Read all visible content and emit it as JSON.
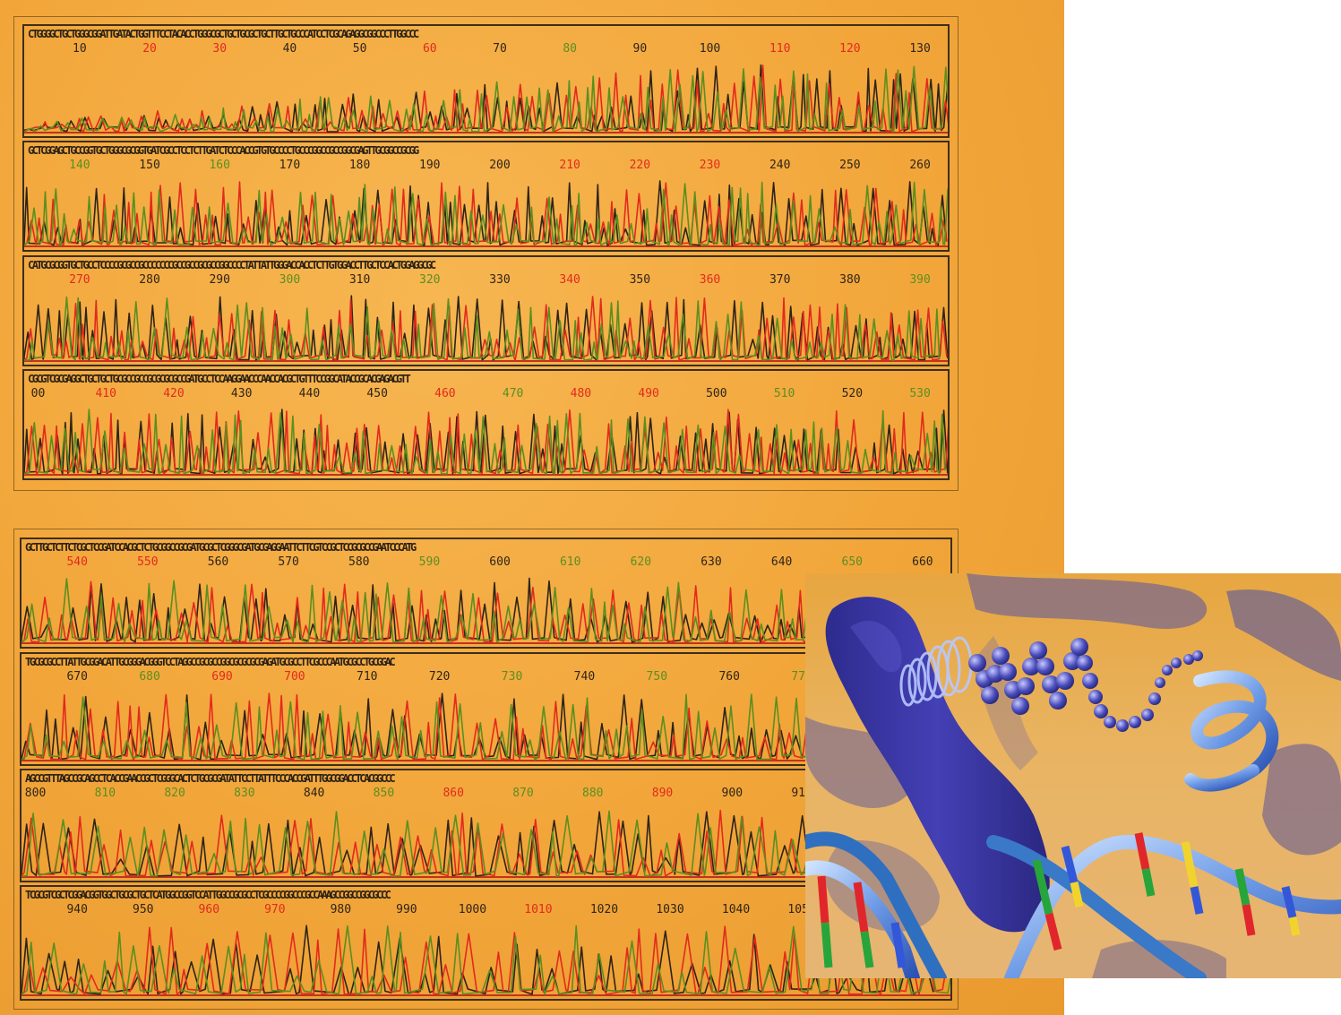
{
  "colors": {
    "background": "#f2a63a",
    "black": "#2e2418",
    "red": "#e22a1d",
    "green": "#5a8f1f",
    "baseline": "#c2331f"
  },
  "panels": [
    {
      "seq": "CTGGGGCTGCTGGGCGGATTGATACTGGTTTCCTACACCTGGGCGCTGCTGCGCTGCTTGCTGCCCATCCTCGCAGAGGCGGCCCTTGGCCC",
      "ticks": [
        {
          "label": "10",
          "c": "k"
        },
        {
          "label": "20",
          "c": "r"
        },
        {
          "label": "30",
          "c": "r"
        },
        {
          "label": "40",
          "c": "k"
        },
        {
          "label": "50",
          "c": "k"
        },
        {
          "label": "60",
          "c": "r"
        },
        {
          "label": "70",
          "c": "k"
        },
        {
          "label": "80",
          "c": "g"
        },
        {
          "label": "90",
          "c": "k"
        },
        {
          "label": "100",
          "c": "k"
        },
        {
          "label": "110",
          "c": "r"
        },
        {
          "label": "120",
          "c": "r"
        },
        {
          "label": "130",
          "c": "k"
        }
      ]
    },
    {
      "seq": "GCTCGGAGCTGCCGGTGCTGGGCGCGGTGATCGCCTCCTCTTGATCTCCCACCGTGTGCCCCTGCCCGGCCGCCGGCGAGTTGCGGCCGCGG",
      "ticks": [
        {
          "label": "140",
          "c": "g"
        },
        {
          "label": "150",
          "c": "k"
        },
        {
          "label": "160",
          "c": "g"
        },
        {
          "label": "170",
          "c": "k"
        },
        {
          "label": "180",
          "c": "k"
        },
        {
          "label": "190",
          "c": "k"
        },
        {
          "label": "200",
          "c": "k"
        },
        {
          "label": "210",
          "c": "r"
        },
        {
          "label": "220",
          "c": "r"
        },
        {
          "label": "230",
          "c": "r"
        },
        {
          "label": "240",
          "c": "k"
        },
        {
          "label": "250",
          "c": "k"
        },
        {
          "label": "260",
          "c": "k"
        }
      ]
    },
    {
      "seq": "CATGCGCGGTGCTGCCTCCCCGCGCCGCCCCCCCGCCGCCGCGCCGGCCCCTATTATTGGGACCACCTCTTGTGGACCTTGCTCCACTGGAGGCGC",
      "ticks": [
        {
          "label": "270",
          "c": "r"
        },
        {
          "label": "280",
          "c": "k"
        },
        {
          "label": "290",
          "c": "k"
        },
        {
          "label": "300",
          "c": "g"
        },
        {
          "label": "310",
          "c": "k"
        },
        {
          "label": "320",
          "c": "g"
        },
        {
          "label": "330",
          "c": "k"
        },
        {
          "label": "340",
          "c": "r"
        },
        {
          "label": "350",
          "c": "k"
        },
        {
          "label": "360",
          "c": "r"
        },
        {
          "label": "370",
          "c": "k"
        },
        {
          "label": "380",
          "c": "k"
        },
        {
          "label": "390",
          "c": "g"
        }
      ]
    },
    {
      "seq": "CGCGTCGCGAGGCTGCTGCTGCGCCGCCGCGCGCGCCGATGCCTCCAAGGAACCCAACCACGCTGTTTCCGGCATACCGCACGAGACGTT",
      "ticks": [
        {
          "label": "00",
          "c": "k"
        },
        {
          "label": "410",
          "c": "r"
        },
        {
          "label": "420",
          "c": "r"
        },
        {
          "label": "430",
          "c": "k"
        },
        {
          "label": "440",
          "c": "k"
        },
        {
          "label": "450",
          "c": "k"
        },
        {
          "label": "460",
          "c": "r"
        },
        {
          "label": "470",
          "c": "g"
        },
        {
          "label": "480",
          "c": "r"
        },
        {
          "label": "490",
          "c": "r"
        },
        {
          "label": "500",
          "c": "k"
        },
        {
          "label": "510",
          "c": "g"
        },
        {
          "label": "520",
          "c": "k"
        },
        {
          "label": "530",
          "c": "g"
        }
      ]
    },
    {
      "seq": "GCTTGCTCTTCTCGCTCCGATCCACGCTCTGCGGCCGCGATGCGCTCGGGCGATGCGAGGAATTCTTCGTCCGCTCCGCGCCGAATCCCATG",
      "ticks": [
        {
          "label": "540",
          "c": "r"
        },
        {
          "label": "550",
          "c": "r"
        },
        {
          "label": "560",
          "c": "k"
        },
        {
          "label": "570",
          "c": "k"
        },
        {
          "label": "580",
          "c": "k"
        },
        {
          "label": "590",
          "c": "g"
        },
        {
          "label": "600",
          "c": "k"
        },
        {
          "label": "610",
          "c": "g"
        },
        {
          "label": "620",
          "c": "g"
        },
        {
          "label": "630",
          "c": "k"
        },
        {
          "label": "640",
          "c": "k"
        },
        {
          "label": "650",
          "c": "g"
        },
        {
          "label": "660",
          "c": "k"
        }
      ]
    },
    {
      "seq": "TGCGCGCCTTATTGCGGACATTGCGGGACGGGTCCTAGGCCGCGCCGGCGCGCGCGAGATGCGCCTTCGCCCAATGCGCCTGCGGAC",
      "ticks": [
        {
          "label": "670",
          "c": "k"
        },
        {
          "label": "680",
          "c": "g"
        },
        {
          "label": "690",
          "c": "r"
        },
        {
          "label": "700",
          "c": "r"
        },
        {
          "label": "710",
          "c": "k"
        },
        {
          "label": "720",
          "c": "k"
        },
        {
          "label": "730",
          "c": "g"
        },
        {
          "label": "740",
          "c": "k"
        },
        {
          "label": "750",
          "c": "g"
        },
        {
          "label": "760",
          "c": "k"
        },
        {
          "label": "770",
          "c": "g"
        }
      ]
    },
    {
      "seq": "AGCCGTTTAGCCGCAGCCTCACCGAACCGCTCGGGCACTCTGCGCGATATTCCTTATTTCCCACCGATTTGGCGGACCTCACGGCCC",
      "ticks": [
        {
          "label": "800",
          "c": "k"
        },
        {
          "label": "810",
          "c": "g"
        },
        {
          "label": "820",
          "c": "g"
        },
        {
          "label": "830",
          "c": "g"
        },
        {
          "label": "840",
          "c": "k"
        },
        {
          "label": "850",
          "c": "g"
        },
        {
          "label": "860",
          "c": "r"
        },
        {
          "label": "870",
          "c": "g"
        },
        {
          "label": "880",
          "c": "g"
        },
        {
          "label": "890",
          "c": "r"
        },
        {
          "label": "900",
          "c": "k"
        },
        {
          "label": "910",
          "c": "k"
        }
      ]
    },
    {
      "seq": "TCGCGTCGCTCGGACGGTGGCTGCGCTGCTCATGGCCGGTCCATTGGCCGCGCCTCGCCCCGGCCCGCCAAAGCCGGCCGGCGCCC",
      "ticks": [
        {
          "label": "940",
          "c": "k"
        },
        {
          "label": "950",
          "c": "k"
        },
        {
          "label": "960",
          "c": "r"
        },
        {
          "label": "970",
          "c": "r"
        },
        {
          "label": "980",
          "c": "k"
        },
        {
          "label": "990",
          "c": "k"
        },
        {
          "label": "1000",
          "c": "k"
        },
        {
          "label": "1010",
          "c": "r"
        },
        {
          "label": "1020",
          "c": "k"
        },
        {
          "label": "1030",
          "c": "k"
        },
        {
          "label": "1040",
          "c": "k"
        },
        {
          "label": "1050",
          "c": "k"
        }
      ]
    }
  ],
  "inset": {
    "description_icon": "dna-chromosome-illustration"
  }
}
